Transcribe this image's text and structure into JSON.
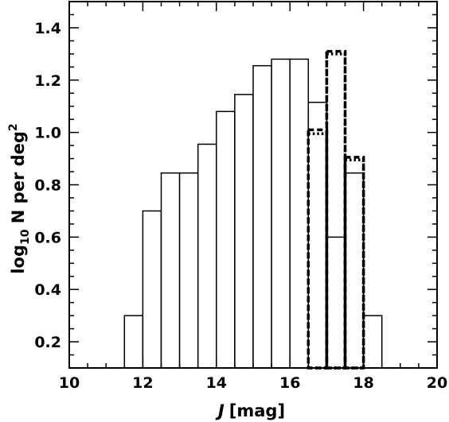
{
  "chart_data": {
    "type": "bar",
    "xlabel": "J [mag]",
    "xlabel_italic": "J",
    "xlabel_unit": "[mag]",
    "ylabel": "log10 N per deg2",
    "ylabel_parts": {
      "prefix": "log",
      "sub": "10",
      "mid": " N per deg",
      "sup": "2"
    },
    "xlim": [
      10,
      20
    ],
    "ylim": [
      0.1,
      1.5
    ],
    "x_major_ticks": [
      10,
      12,
      14,
      16,
      18,
      20
    ],
    "x_tick_labels": [
      "10",
      "12",
      "14",
      "16",
      "18",
      "20"
    ],
    "y_major_ticks": [
      0.2,
      0.4,
      0.6,
      0.8,
      1.0,
      1.2,
      1.4
    ],
    "y_tick_labels": [
      "0.2",
      "0.4",
      "0.6",
      "0.8",
      "1.0",
      "1.2",
      "1.4"
    ],
    "x_minor_step": 0.5,
    "y_minor_step": 0.05,
    "grid": false,
    "bin_width": 0.5,
    "series": [
      {
        "style": "solid",
        "bin_starts": [
          11.5,
          12.0,
          12.5,
          13.0,
          13.5,
          14.0,
          14.5,
          15.0,
          15.5,
          16.0,
          16.5,
          17.0,
          17.5,
          18.0
        ],
        "values": [
          0.3,
          0.7,
          0.845,
          0.845,
          0.955,
          1.08,
          1.145,
          1.255,
          1.28,
          1.28,
          1.115,
          0.6,
          0.845,
          0.3
        ]
      },
      {
        "style": "dashed",
        "bin_starts": [
          16.5,
          17.0,
          17.5
        ],
        "values": [
          1.01,
          1.31,
          0.905
        ]
      },
      {
        "style": "dotted",
        "bin_starts": [
          16.5,
          17.0,
          17.5
        ],
        "values": [
          0.995,
          1.3,
          0.895
        ]
      }
    ]
  }
}
